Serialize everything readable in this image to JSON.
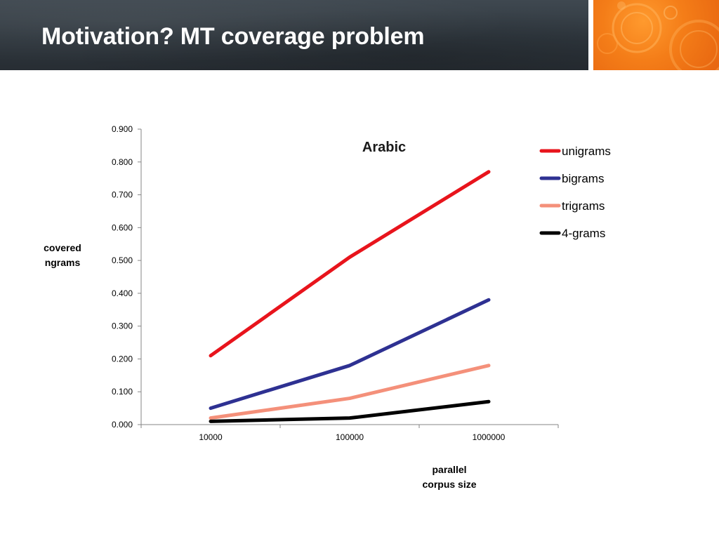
{
  "slide": {
    "title": "Motivation? MT coverage problem",
    "accent_color": "#f47d18",
    "banner_color": "#30383f"
  },
  "chart_data": {
    "type": "line",
    "title": "Arabic",
    "ylabel": [
      "covered",
      "ngrams"
    ],
    "xlabel": [
      "parallel",
      "corpus size"
    ],
    "categories": [
      "10000",
      "100000",
      "1000000"
    ],
    "ylim": [
      0,
      0.9
    ],
    "yticks": [
      "0.000",
      "0.100",
      "0.200",
      "0.300",
      "0.400",
      "0.500",
      "0.600",
      "0.700",
      "0.800",
      "0.900"
    ],
    "grid": false,
    "legend_position": "right",
    "series": [
      {
        "name": "unigrams",
        "values": [
          0.21,
          0.51,
          0.77
        ],
        "color": "#e8141c"
      },
      {
        "name": "bigrams",
        "values": [
          0.05,
          0.18,
          0.38
        ],
        "color": "#2e3192"
      },
      {
        "name": "trigrams",
        "values": [
          0.02,
          0.08,
          0.18
        ],
        "color": "#f4907a"
      },
      {
        "name": "4-grams",
        "values": [
          0.01,
          0.02,
          0.07
        ],
        "color": "#000000"
      }
    ]
  }
}
